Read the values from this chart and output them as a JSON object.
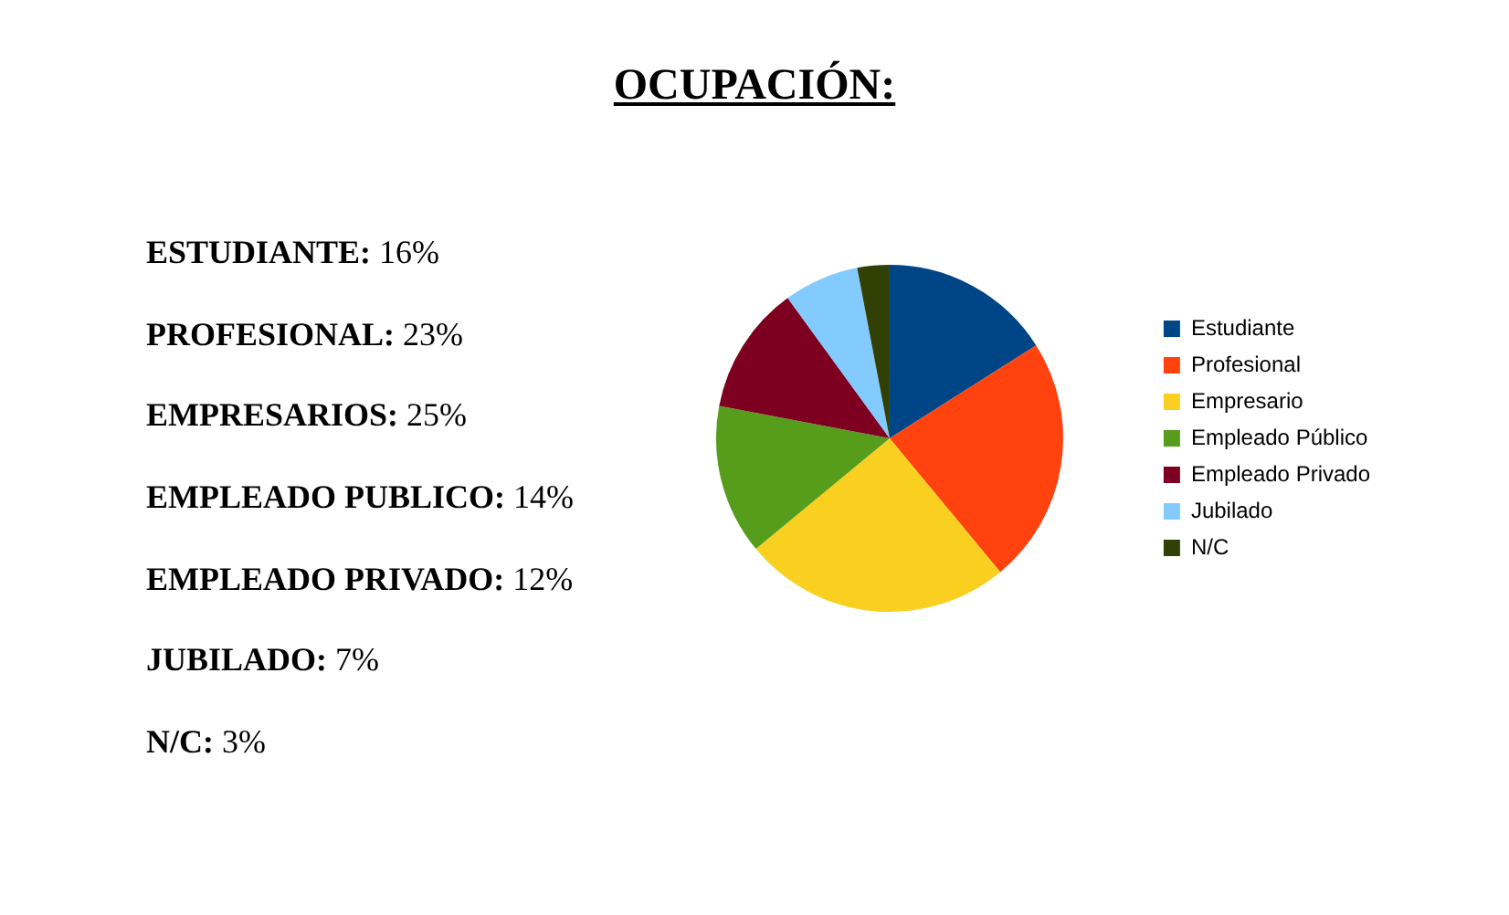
{
  "chart_data": {
    "type": "pie",
    "title": "OCUPACIÓN:",
    "categories": [
      "Estudiante",
      "Profesional",
      "Empresario",
      "Empleado Público",
      "Empleado Privado",
      "Jubilado",
      "N/C"
    ],
    "values": [
      16,
      23,
      25,
      14,
      12,
      7,
      3
    ],
    "colors": [
      "#004586",
      "#ff420e",
      "#f9d01f",
      "#579d1c",
      "#7e0021",
      "#83caff",
      "#314004"
    ],
    "legend": "right",
    "annotations": [
      "ESTUDIANTE: 16%",
      "PROFESIONAL: 23%",
      "EMPRESARIOS: 25%",
      "EMPLEADO PUBLICO: 14%",
      "EMPLEADO PRIVADO: 12%",
      "JUBILADO: 7%",
      "N/C: 3%"
    ]
  }
}
